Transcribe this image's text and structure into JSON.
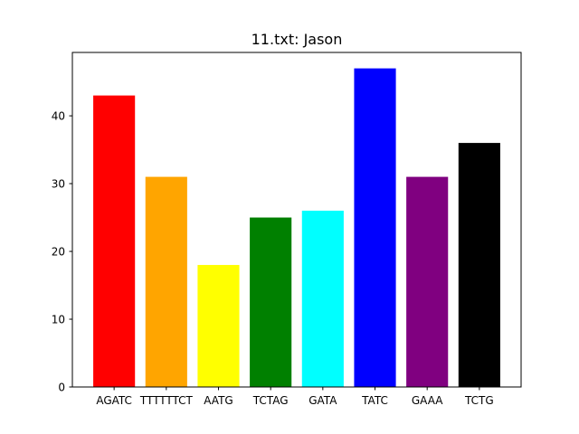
{
  "chart_data": {
    "type": "bar",
    "title": "11.txt: Jason",
    "xlabel": "",
    "ylabel": "",
    "categories": [
      "AGATC",
      "TTTTTTCT",
      "AATG",
      "TCTAG",
      "GATA",
      "TATC",
      "GAAA",
      "TCTG"
    ],
    "values": [
      43,
      31,
      18,
      25,
      26,
      47,
      31,
      36
    ],
    "colors": [
      "#ff0000",
      "#ffa500",
      "#ffff00",
      "#008000",
      "#00ffff",
      "#0000ff",
      "#800080",
      "#000000"
    ],
    "ylim": [
      0,
      49.35
    ],
    "yticks": [
      0,
      10,
      20,
      30,
      40
    ],
    "grid": false,
    "legend": "none"
  }
}
